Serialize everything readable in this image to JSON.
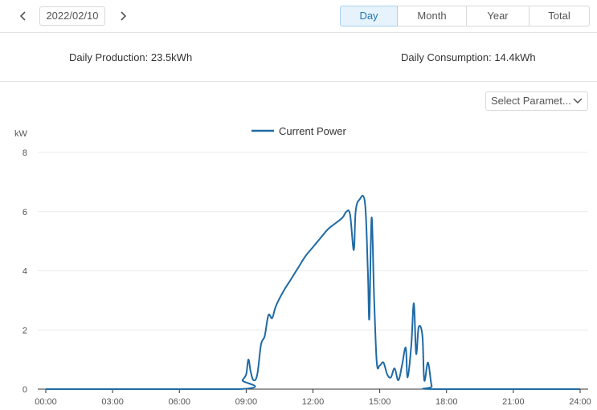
{
  "toolbar": {
    "date": "2022/02/10",
    "periods": [
      "Day",
      "Month",
      "Year",
      "Total"
    ],
    "active_period": "Day"
  },
  "summary": {
    "production": "Daily Production: 23.5kWh",
    "consumption": "Daily Consumption: 14.4kWh"
  },
  "selector": {
    "label": "Select Paramet..."
  },
  "chart_data": {
    "type": "line",
    "ylabel": "kW",
    "ylim": [
      0,
      8
    ],
    "yticks": [
      "0",
      "2",
      "4",
      "6",
      "8"
    ],
    "xlim_hours": [
      0,
      24
    ],
    "xticks": [
      "00:00",
      "03:00",
      "06:00",
      "09:00",
      "12:00",
      "15:00",
      "18:00",
      "21:00",
      "24:00"
    ],
    "legend_position": "top-center",
    "grid": true,
    "series": [
      {
        "name": "Current Power",
        "color": "#1f6aa5",
        "points": [
          [
            "00:00",
            0
          ],
          [
            "08:40",
            0
          ],
          [
            "08:50",
            0.3
          ],
          [
            "09:00",
            0.5
          ],
          [
            "09:06",
            1.0
          ],
          [
            "09:12",
            0.6
          ],
          [
            "09:20",
            0.3
          ],
          [
            "09:30",
            0.5
          ],
          [
            "09:40",
            1.5
          ],
          [
            "09:50",
            1.8
          ],
          [
            "10:00",
            2.5
          ],
          [
            "10:10",
            2.4
          ],
          [
            "10:20",
            2.8
          ],
          [
            "10:40",
            3.3
          ],
          [
            "11:00",
            3.7
          ],
          [
            "11:20",
            4.1
          ],
          [
            "11:40",
            4.5
          ],
          [
            "12:00",
            4.8
          ],
          [
            "12:20",
            5.1
          ],
          [
            "12:40",
            5.4
          ],
          [
            "13:00",
            5.6
          ],
          [
            "13:20",
            5.8
          ],
          [
            "13:30",
            6.0
          ],
          [
            "13:40",
            5.9
          ],
          [
            "13:50",
            4.7
          ],
          [
            "13:55",
            6.0
          ],
          [
            "14:05",
            6.4
          ],
          [
            "14:20",
            6.3
          ],
          [
            "14:28",
            4.0
          ],
          [
            "14:32",
            2.4
          ],
          [
            "14:38",
            5.8
          ],
          [
            "14:45",
            3.0
          ],
          [
            "14:52",
            0.9
          ],
          [
            "15:00",
            0.8
          ],
          [
            "15:10",
            0.9
          ],
          [
            "15:20",
            0.5
          ],
          [
            "15:30",
            0.4
          ],
          [
            "15:40",
            0.7
          ],
          [
            "15:50",
            0.3
          ],
          [
            "16:00",
            0.8
          ],
          [
            "16:10",
            1.4
          ],
          [
            "16:15",
            0.4
          ],
          [
            "16:25",
            1.5
          ],
          [
            "16:32",
            2.9
          ],
          [
            "16:38",
            1.2
          ],
          [
            "16:45",
            2.1
          ],
          [
            "16:55",
            1.8
          ],
          [
            "17:00",
            0.3
          ],
          [
            "17:10",
            0.9
          ],
          [
            "17:20",
            0.1
          ],
          [
            "17:30",
            0
          ],
          [
            "24:00",
            0
          ]
        ]
      }
    ]
  },
  "icons": {
    "prev": "chevron-left-icon",
    "next": "chevron-right-icon",
    "dropdown": "chevron-down-icon"
  }
}
